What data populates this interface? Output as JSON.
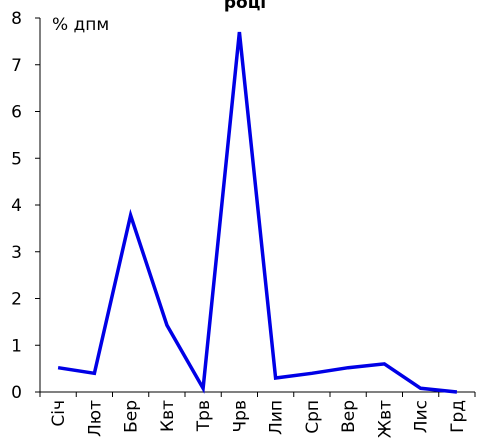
{
  "chart_data": {
    "type": "line",
    "title": "році",
    "ylabel": "% дпм",
    "xlabel": "",
    "categories": [
      "Січ",
      "Лют",
      "Бер",
      "Квт",
      "Трв",
      "Чрв",
      "Лип",
      "Срп",
      "Вер",
      "Жвт",
      "Лис",
      "Грд"
    ],
    "series": [
      {
        "values": [
          0.52,
          0.4,
          3.78,
          1.43,
          0.08,
          7.7,
          0.3,
          0.4,
          0.52,
          0.6,
          0.08,
          0.0
        ]
      }
    ],
    "ylim": [
      0,
      8
    ],
    "yticks": [
      "0",
      "1",
      "2",
      "3",
      "4",
      "5",
      "6",
      "7",
      "8"
    ],
    "grid": false,
    "line_color": "#0000e6"
  }
}
